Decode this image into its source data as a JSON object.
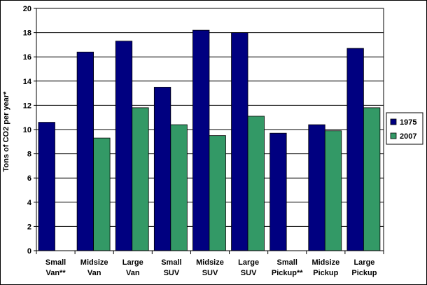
{
  "chart_data": {
    "type": "bar",
    "categories": [
      [
        "Small",
        "Van**"
      ],
      [
        "Midsize",
        "Van"
      ],
      [
        "Large",
        "Van"
      ],
      [
        "Small",
        "SUV"
      ],
      [
        "Midsize",
        "SUV"
      ],
      [
        "Large",
        "SUV"
      ],
      [
        "Small",
        "Pickup**"
      ],
      [
        "Midsize",
        "Pickup"
      ],
      [
        "Large",
        "Pickup"
      ]
    ],
    "series": [
      {
        "name": "1975",
        "color": "#000080",
        "values": [
          10.6,
          16.4,
          17.3,
          13.5,
          18.2,
          18.0,
          9.7,
          10.4,
          16.7
        ]
      },
      {
        "name": "2007",
        "color": "#339966",
        "values": [
          null,
          9.3,
          11.8,
          10.4,
          9.5,
          11.1,
          null,
          9.9,
          11.8
        ]
      }
    ],
    "ylabel": "Tons of CO2 per year*",
    "ylim": [
      0,
      20
    ],
    "yticks": [
      0,
      2,
      4,
      6,
      8,
      10,
      12,
      14,
      16,
      18,
      20
    ],
    "grid": true,
    "legend": "right"
  }
}
